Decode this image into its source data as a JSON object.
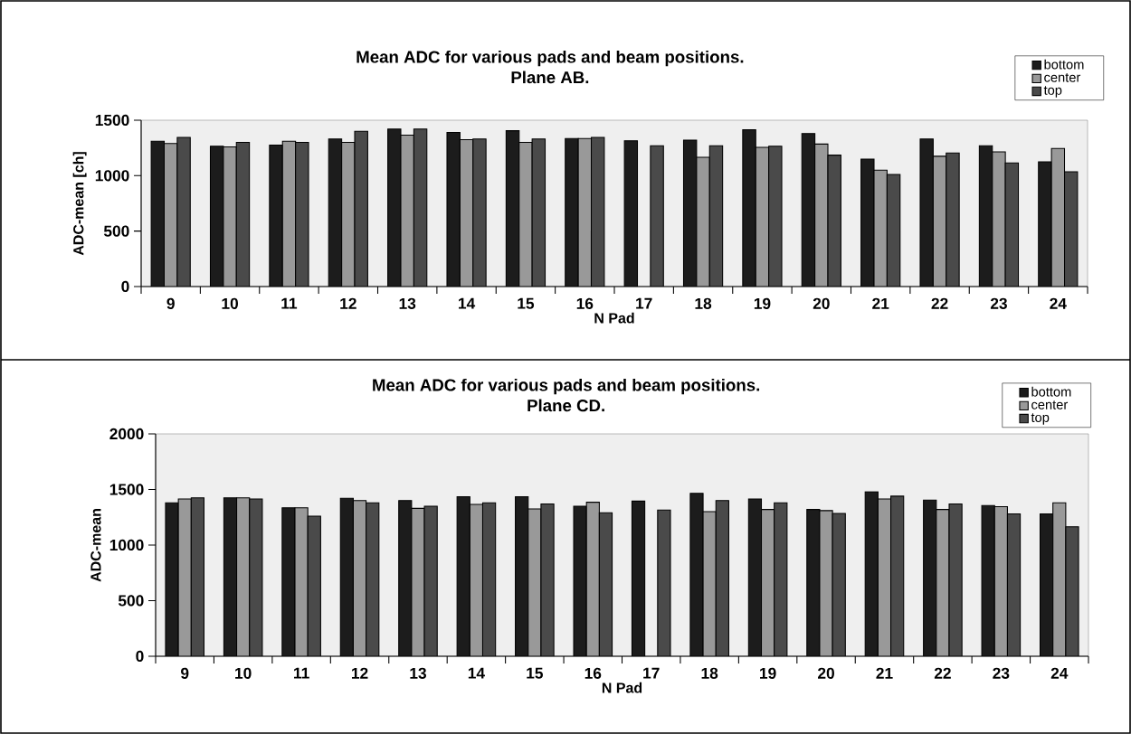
{
  "chart_data": [
    {
      "type": "bar",
      "title": "Mean ADC for various pads and beam positions.",
      "subtitle": "Plane AB.",
      "xlabel": "N Pad",
      "ylabel": "ADC-mean [ch]",
      "categories": [
        "9",
        "10",
        "11",
        "12",
        "13",
        "14",
        "15",
        "16",
        "17",
        "18",
        "19",
        "20",
        "21",
        "22",
        "23",
        "24"
      ],
      "series": [
        {
          "name": "bottom",
          "color": "#1c1c1c",
          "values": [
            1310,
            1265,
            1275,
            1330,
            1420,
            1390,
            1405,
            1335,
            1315,
            1320,
            1415,
            1380,
            1150,
            1330,
            1270,
            1125
          ]
        },
        {
          "name": "center",
          "color": "#999999",
          "values": [
            1290,
            1260,
            1310,
            1300,
            1365,
            1325,
            1300,
            1335,
            null,
            1165,
            1255,
            1285,
            1050,
            1175,
            1215,
            1245
          ]
        },
        {
          "name": "top",
          "color": "#4a4a4a",
          "values": [
            1345,
            1300,
            1300,
            1400,
            1420,
            1330,
            1330,
            1345,
            1270,
            1270,
            1265,
            1185,
            1010,
            1205,
            1115,
            1035
          ]
        }
      ],
      "ylim": [
        0,
        1500
      ],
      "yticks": [
        0,
        500,
        1000,
        1500
      ],
      "legend": "top right"
    },
    {
      "type": "bar",
      "title": "Mean ADC for various pads and beam positions.",
      "subtitle": "Plane CD.",
      "xlabel": "N Pad",
      "ylabel": "ADC-mean",
      "categories": [
        "9",
        "10",
        "11",
        "12",
        "13",
        "14",
        "15",
        "16",
        "17",
        "18",
        "19",
        "20",
        "21",
        "22",
        "23",
        "24"
      ],
      "series": [
        {
          "name": "bottom",
          "color": "#1c1c1c",
          "values": [
            1380,
            1425,
            1335,
            1420,
            1400,
            1435,
            1435,
            1350,
            1395,
            1465,
            1415,
            1320,
            1480,
            1405,
            1355,
            1280
          ]
        },
        {
          "name": "center",
          "color": "#999999",
          "values": [
            1415,
            1425,
            1335,
            1400,
            1330,
            1365,
            1325,
            1385,
            null,
            1300,
            1320,
            1310,
            1415,
            1320,
            1345,
            1380
          ]
        },
        {
          "name": "top",
          "color": "#4a4a4a",
          "values": [
            1425,
            1415,
            1260,
            1380,
            1350,
            1380,
            1370,
            1290,
            1315,
            1400,
            1380,
            1285,
            1440,
            1370,
            1280,
            1165
          ]
        }
      ],
      "ylim": [
        0,
        2000
      ],
      "yticks": [
        0,
        500,
        1000,
        1500,
        2000
      ],
      "legend": "top right"
    }
  ]
}
